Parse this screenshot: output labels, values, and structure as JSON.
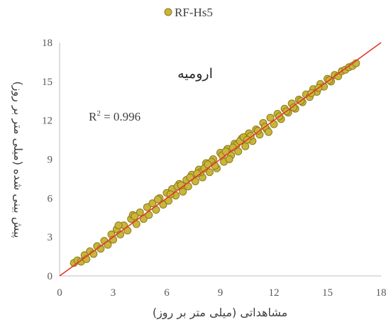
{
  "chart_data": {
    "type": "scatter",
    "title": "ارومیه",
    "legend": {
      "placement": "top-center",
      "entries": [
        {
          "name": "RF-Hs5",
          "marker_color": "#C9B53A",
          "marker_edge": "#8B7A1A"
        }
      ]
    },
    "xlabel": "مشاهداتی (میلی متر بر روز)",
    "ylabel": "پیش بینی شده (میلی متر بر روز)",
    "xlim": [
      0,
      18
    ],
    "ylim": [
      0,
      18
    ],
    "xticks": [
      "0",
      "3",
      "6",
      "9",
      "12",
      "15",
      "18"
    ],
    "yticks": [
      "0",
      "3",
      "6",
      "9",
      "12",
      "15",
      "18"
    ],
    "grid": false,
    "annotation": {
      "prefix": "R",
      "sup": "2",
      "suffix": " = 0.996"
    },
    "reference_line": {
      "type": "1:1",
      "color": "#E8332A",
      "from": [
        0,
        0
      ],
      "to": [
        18,
        18
      ]
    },
    "series": [
      {
        "name": "RF-Hs5",
        "x_range_approx": [
          0.8,
          16.6
        ],
        "points": [
          [
            0.8,
            1.0
          ],
          [
            1.0,
            1.2
          ],
          [
            1.2,
            1.1
          ],
          [
            1.4,
            1.6
          ],
          [
            1.5,
            1.3
          ],
          [
            1.7,
            1.9
          ],
          [
            1.9,
            1.7
          ],
          [
            2.1,
            2.3
          ],
          [
            2.3,
            2.1
          ],
          [
            2.5,
            2.7
          ],
          [
            2.7,
            2.4
          ],
          [
            2.9,
            3.2
          ],
          [
            3.0,
            2.8
          ],
          [
            3.2,
            3.6
          ],
          [
            3.4,
            3.2
          ],
          [
            3.6,
            3.9
          ],
          [
            3.8,
            3.5
          ],
          [
            4.0,
            4.4
          ],
          [
            4.1,
            4.7
          ],
          [
            4.3,
            4.0
          ],
          [
            4.5,
            4.9
          ],
          [
            4.7,
            4.4
          ],
          [
            4.9,
            5.3
          ],
          [
            5.0,
            4.7
          ],
          [
            5.2,
            5.6
          ],
          [
            5.4,
            5.1
          ],
          [
            5.6,
            6.0
          ],
          [
            5.8,
            5.5
          ],
          [
            6.0,
            6.4
          ],
          [
            6.1,
            5.8
          ],
          [
            6.3,
            6.7
          ],
          [
            6.5,
            6.2
          ],
          [
            6.7,
            7.1
          ],
          [
            6.9,
            6.5
          ],
          [
            7.1,
            7.4
          ],
          [
            7.2,
            6.9
          ],
          [
            7.4,
            7.8
          ],
          [
            7.6,
            7.3
          ],
          [
            7.8,
            8.2
          ],
          [
            8.0,
            7.6
          ],
          [
            8.2,
            8.7
          ],
          [
            8.4,
            8.0
          ],
          [
            8.6,
            9.0
          ],
          [
            8.8,
            8.3
          ],
          [
            9.0,
            9.5
          ],
          [
            9.2,
            8.8
          ],
          [
            9.4,
            9.8
          ],
          [
            9.6,
            9.3
          ],
          [
            9.8,
            10.2
          ],
          [
            10.0,
            9.6
          ],
          [
            10.2,
            10.6
          ],
          [
            10.4,
            10.0
          ],
          [
            10.6,
            11.0
          ],
          [
            10.8,
            10.4
          ],
          [
            11.0,
            11.3
          ],
          [
            11.2,
            10.9
          ],
          [
            11.4,
            11.8
          ],
          [
            11.6,
            11.3
          ],
          [
            11.8,
            12.2
          ],
          [
            12.0,
            11.7
          ],
          [
            12.2,
            12.5
          ],
          [
            12.4,
            12.1
          ],
          [
            12.6,
            12.9
          ],
          [
            12.8,
            12.6
          ],
          [
            13.0,
            13.3
          ],
          [
            13.2,
            12.9
          ],
          [
            13.4,
            13.6
          ],
          [
            13.6,
            13.4
          ],
          [
            13.8,
            14.0
          ],
          [
            14.0,
            13.8
          ],
          [
            14.2,
            14.4
          ],
          [
            14.4,
            14.2
          ],
          [
            14.6,
            14.8
          ],
          [
            14.8,
            14.6
          ],
          [
            15.0,
            15.2
          ],
          [
            15.2,
            15.0
          ],
          [
            15.4,
            15.5
          ],
          [
            15.6,
            15.4
          ],
          [
            15.8,
            15.8
          ],
          [
            16.0,
            15.9
          ],
          [
            16.2,
            16.1
          ],
          [
            16.4,
            16.2
          ],
          [
            16.6,
            16.4
          ],
          [
            3.3,
            3.9
          ],
          [
            4.2,
            4.6
          ],
          [
            5.5,
            5.9
          ],
          [
            6.6,
            6.9
          ],
          [
            7.3,
            7.6
          ],
          [
            7.9,
            8.0
          ],
          [
            8.1,
            8.3
          ],
          [
            8.5,
            8.8
          ],
          [
            9.1,
            9.3
          ],
          [
            9.3,
            9.6
          ],
          [
            9.5,
            9.0
          ],
          [
            9.9,
            10.1
          ],
          [
            10.1,
            10.4
          ],
          [
            10.3,
            10.7
          ],
          [
            10.7,
            10.8
          ],
          [
            11.1,
            11.2
          ],
          [
            11.5,
            11.5
          ],
          [
            11.7,
            11.1
          ],
          [
            12.3,
            12.3
          ],
          [
            12.7,
            12.7
          ],
          [
            13.1,
            13.0
          ],
          [
            13.5,
            13.5
          ],
          [
            14.1,
            14.1
          ],
          [
            14.5,
            14.5
          ],
          [
            15.1,
            15.1
          ],
          [
            6.2,
            6.3
          ],
          [
            6.8,
            7.0
          ],
          [
            7.7,
            7.9
          ],
          [
            8.3,
            8.6
          ],
          [
            8.7,
            8.5
          ],
          [
            9.7,
            9.9
          ],
          [
            10.5,
            10.5
          ]
        ]
      }
    ]
  }
}
